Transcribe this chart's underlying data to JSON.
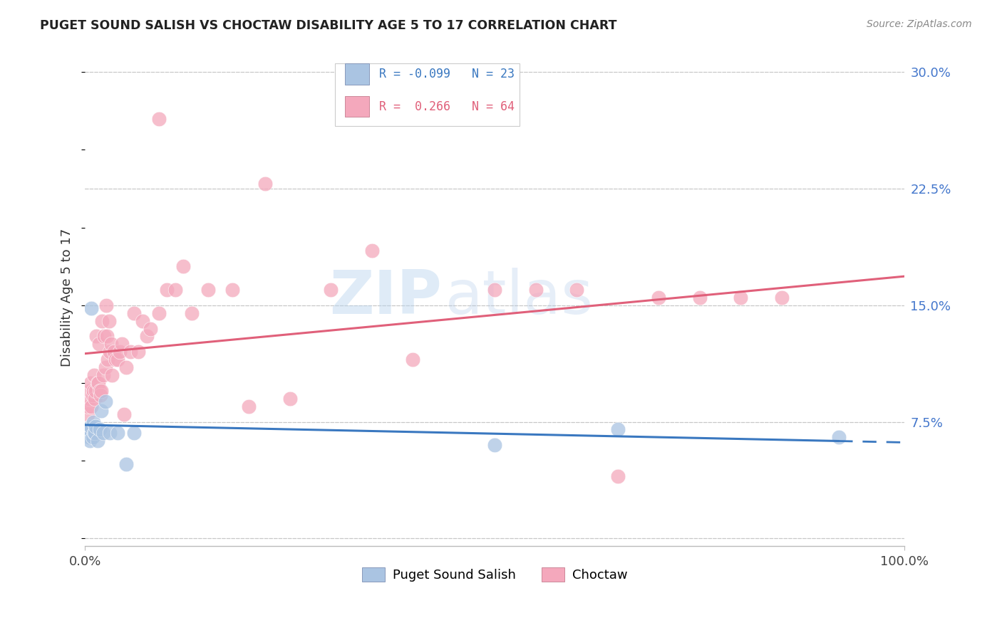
{
  "title": "PUGET SOUND SALISH VS CHOCTAW DISABILITY AGE 5 TO 17 CORRELATION CHART",
  "source": "Source: ZipAtlas.com",
  "ylabel": "Disability Age 5 to 17",
  "xlim": [
    0.0,
    1.0
  ],
  "ylim": [
    -0.005,
    0.315
  ],
  "yticks": [
    0.0,
    0.075,
    0.15,
    0.225,
    0.3
  ],
  "yticklabels": [
    "",
    "7.5%",
    "15.0%",
    "22.5%",
    "30.0%"
  ],
  "grid_color": "#c8c8c8",
  "background_color": "#ffffff",
  "puget_color": "#aac4e2",
  "choctaw_color": "#f4a8bc",
  "puget_line_color": "#3a78c0",
  "choctaw_line_color": "#e0607a",
  "legend_puget_label": "Puget Sound Salish",
  "legend_choctaw_label": "Choctaw",
  "r_puget": "-0.099",
  "n_puget": "23",
  "r_choctaw": "0.266",
  "n_choctaw": "64",
  "watermark_zip": "ZIP",
  "watermark_atlas": "atlas",
  "tick_color": "#4477cc",
  "puget_x": [
    0.003,
    0.004,
    0.005,
    0.006,
    0.007,
    0.008,
    0.009,
    0.01,
    0.011,
    0.012,
    0.013,
    0.015,
    0.018,
    0.02,
    0.022,
    0.025,
    0.03,
    0.04,
    0.05,
    0.06,
    0.5,
    0.65,
    0.92
  ],
  "puget_y": [
    0.07,
    0.068,
    0.065,
    0.063,
    0.072,
    0.148,
    0.065,
    0.075,
    0.068,
    0.068,
    0.072,
    0.063,
    0.07,
    0.082,
    0.068,
    0.088,
    0.068,
    0.068,
    0.048,
    0.068,
    0.06,
    0.07,
    0.065
  ],
  "choctaw_x": [
    0.003,
    0.004,
    0.005,
    0.006,
    0.007,
    0.008,
    0.009,
    0.01,
    0.011,
    0.012,
    0.013,
    0.014,
    0.015,
    0.016,
    0.017,
    0.018,
    0.019,
    0.02,
    0.021,
    0.022,
    0.023,
    0.025,
    0.026,
    0.027,
    0.028,
    0.029,
    0.03,
    0.032,
    0.033,
    0.035,
    0.037,
    0.04,
    0.042,
    0.045,
    0.048,
    0.05,
    0.055,
    0.06,
    0.065,
    0.07,
    0.075,
    0.08,
    0.09,
    0.09,
    0.1,
    0.11,
    0.12,
    0.13,
    0.15,
    0.18,
    0.2,
    0.22,
    0.25,
    0.3,
    0.35,
    0.4,
    0.5,
    0.55,
    0.6,
    0.65,
    0.7,
    0.75,
    0.8,
    0.85
  ],
  "choctaw_y": [
    0.08,
    0.085,
    0.09,
    0.095,
    0.1,
    0.085,
    0.092,
    0.095,
    0.105,
    0.09,
    0.095,
    0.13,
    0.1,
    0.1,
    0.125,
    0.095,
    0.092,
    0.095,
    0.14,
    0.105,
    0.13,
    0.11,
    0.15,
    0.13,
    0.115,
    0.14,
    0.12,
    0.125,
    0.105,
    0.12,
    0.115,
    0.115,
    0.12,
    0.125,
    0.08,
    0.11,
    0.12,
    0.145,
    0.12,
    0.14,
    0.13,
    0.135,
    0.145,
    0.27,
    0.16,
    0.16,
    0.175,
    0.145,
    0.16,
    0.16,
    0.085,
    0.228,
    0.09,
    0.16,
    0.185,
    0.115,
    0.16,
    0.16,
    0.16,
    0.04,
    0.155,
    0.155,
    0.155,
    0.155
  ]
}
